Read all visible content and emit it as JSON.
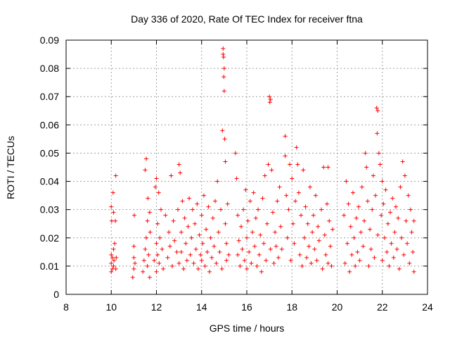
{
  "chart_data": {
    "type": "scatter",
    "title": "Day 336 of 2020, Rate Of TEC Index for receiver ftna",
    "xlabel": "GPS time / hours",
    "ylabel": "ROTI / TECUs",
    "xlim": [
      8,
      24
    ],
    "ylim": [
      0,
      0.09
    ],
    "x_ticks": [
      "8",
      "10",
      "12",
      "14",
      "16",
      "18",
      "20",
      "22",
      "24"
    ],
    "y_ticks": [
      "0",
      "0.01",
      "0.02",
      "0.03",
      "0.04",
      "0.05",
      "0.06",
      "0.07",
      "0.08",
      "0.09"
    ],
    "grid": true,
    "marker": "+",
    "color": "#ff0000",
    "series": [
      {
        "points": [
          [
            10.0,
            0.008
          ],
          [
            10.0,
            0.011
          ],
          [
            10.0,
            0.014
          ],
          [
            10.0,
            0.031
          ],
          [
            10.02,
            0.026
          ],
          [
            10.05,
            0.009
          ],
          [
            10.05,
            0.013
          ],
          [
            10.08,
            0.036
          ],
          [
            10.1,
            0.01
          ],
          [
            10.1,
            0.016
          ],
          [
            10.1,
            0.029
          ],
          [
            10.12,
            0.012
          ],
          [
            10.15,
            0.018
          ],
          [
            10.18,
            0.026
          ],
          [
            10.2,
            0.042
          ],
          [
            10.2,
            0.009
          ],
          [
            10.22,
            0.013
          ],
          [
            10.95,
            0.006
          ],
          [
            11.0,
            0.009
          ],
          [
            11.0,
            0.013
          ],
          [
            11.0,
            0.017
          ],
          [
            11.02,
            0.028
          ],
          [
            11.05,
            0.011
          ],
          [
            11.4,
            0.008
          ],
          [
            11.45,
            0.012
          ],
          [
            11.5,
            0.044
          ],
          [
            11.5,
            0.016
          ],
          [
            11.55,
            0.048
          ],
          [
            11.55,
            0.02
          ],
          [
            11.6,
            0.01
          ],
          [
            11.6,
            0.026
          ],
          [
            11.62,
            0.034
          ],
          [
            11.65,
            0.014
          ],
          [
            11.7,
            0.029
          ],
          [
            11.7,
            0.006
          ],
          [
            11.72,
            0.022
          ],
          [
            11.9,
            0.012
          ],
          [
            11.95,
            0.038
          ],
          [
            12.0,
            0.041
          ],
          [
            12.0,
            0.018
          ],
          [
            12.0,
            0.008
          ],
          [
            12.05,
            0.025
          ],
          [
            12.05,
            0.014
          ],
          [
            12.1,
            0.036
          ],
          [
            12.12,
            0.011
          ],
          [
            12.15,
            0.02
          ],
          [
            12.2,
            0.03
          ],
          [
            12.25,
            0.016
          ],
          [
            12.3,
            0.009
          ],
          [
            12.4,
            0.028
          ],
          [
            12.5,
            0.013
          ],
          [
            12.55,
            0.022
          ],
          [
            12.6,
            0.017
          ],
          [
            12.65,
            0.042
          ],
          [
            12.7,
            0.01
          ],
          [
            12.75,
            0.026
          ],
          [
            12.8,
            0.019
          ],
          [
            12.9,
            0.015
          ],
          [
            12.95,
            0.03
          ],
          [
            13.0,
            0.046
          ],
          [
            13.0,
            0.011
          ],
          [
            13.05,
            0.043
          ],
          [
            13.1,
            0.022
          ],
          [
            13.1,
            0.015
          ],
          [
            13.15,
            0.033
          ],
          [
            13.2,
            0.009
          ],
          [
            13.25,
            0.027
          ],
          [
            13.3,
            0.018
          ],
          [
            13.35,
            0.012
          ],
          [
            13.4,
            0.024
          ],
          [
            13.45,
            0.034
          ],
          [
            13.5,
            0.014
          ],
          [
            13.55,
            0.02
          ],
          [
            13.6,
            0.03
          ],
          [
            13.65,
            0.011
          ],
          [
            13.7,
            0.025
          ],
          [
            13.75,
            0.016
          ],
          [
            13.8,
            0.032
          ],
          [
            13.85,
            0.009
          ],
          [
            13.9,
            0.021
          ],
          [
            13.95,
            0.014
          ],
          [
            14.0,
            0.028
          ],
          [
            14.0,
            0.012
          ],
          [
            14.05,
            0.018
          ],
          [
            14.1,
            0.035
          ],
          [
            14.15,
            0.01
          ],
          [
            14.2,
            0.023
          ],
          [
            14.25,
            0.015
          ],
          [
            14.3,
            0.031
          ],
          [
            14.35,
            0.008
          ],
          [
            14.4,
            0.02
          ],
          [
            14.45,
            0.013
          ],
          [
            14.5,
            0.027
          ],
          [
            14.55,
            0.017
          ],
          [
            14.6,
            0.033
          ],
          [
            14.65,
            0.011
          ],
          [
            14.7,
            0.04
          ],
          [
            14.75,
            0.022
          ],
          [
            14.8,
            0.015
          ],
          [
            14.85,
            0.03
          ],
          [
            14.9,
            0.009
          ],
          [
            14.92,
            0.058
          ],
          [
            14.95,
            0.087
          ],
          [
            14.95,
            0.085
          ],
          [
            14.97,
            0.084
          ],
          [
            14.98,
            0.077
          ],
          [
            15.0,
            0.072
          ],
          [
            15.0,
            0.08
          ],
          [
            15.02,
            0.055
          ],
          [
            15.05,
            0.047
          ],
          [
            15.05,
            0.025
          ],
          [
            15.1,
            0.018
          ],
          [
            15.1,
            0.012
          ],
          [
            15.15,
            0.032
          ],
          [
            15.2,
            0.014
          ],
          [
            15.5,
            0.05
          ],
          [
            15.55,
            0.041
          ],
          [
            15.6,
            0.028
          ],
          [
            15.6,
            0.014
          ],
          [
            15.65,
            0.019
          ],
          [
            15.7,
            0.01
          ],
          [
            15.75,
            0.024
          ],
          [
            15.8,
            0.016
          ],
          [
            15.85,
            0.03
          ],
          [
            15.9,
            0.012
          ],
          [
            15.95,
            0.037
          ],
          [
            16.0,
            0.02
          ],
          [
            16.0,
            0.009
          ],
          [
            16.05,
            0.026
          ],
          [
            16.1,
            0.015
          ],
          [
            16.15,
            0.033
          ],
          [
            16.2,
            0.011
          ],
          [
            16.25,
            0.022
          ],
          [
            16.3,
            0.036
          ],
          [
            16.35,
            0.017
          ],
          [
            16.4,
            0.027
          ],
          [
            16.45,
            0.01
          ],
          [
            16.5,
            0.03
          ],
          [
            16.55,
            0.014
          ],
          [
            16.6,
            0.021
          ],
          [
            16.65,
            0.008
          ],
          [
            16.7,
            0.034
          ],
          [
            16.75,
            0.018
          ],
          [
            16.8,
            0.042
          ],
          [
            16.85,
            0.012
          ],
          [
            16.9,
            0.025
          ],
          [
            16.95,
            0.046
          ],
          [
            17.0,
            0.07
          ],
          [
            17.02,
            0.068
          ],
          [
            17.05,
            0.069
          ],
          [
            17.05,
            0.016
          ],
          [
            17.1,
            0.044
          ],
          [
            17.15,
            0.029
          ],
          [
            17.2,
            0.011
          ],
          [
            17.25,
            0.022
          ],
          [
            17.3,
            0.017
          ],
          [
            17.35,
            0.033
          ],
          [
            17.4,
            0.013
          ],
          [
            17.45,
            0.038
          ],
          [
            17.5,
            0.024
          ],
          [
            17.55,
            0.016
          ],
          [
            17.7,
            0.056
          ],
          [
            17.7,
            0.049
          ],
          [
            17.75,
            0.035
          ],
          [
            17.8,
            0.02
          ],
          [
            17.85,
            0.03
          ],
          [
            17.9,
            0.046
          ],
          [
            17.95,
            0.012
          ],
          [
            18.0,
            0.041
          ],
          [
            18.05,
            0.025
          ],
          [
            18.1,
            0.018
          ],
          [
            18.15,
            0.033
          ],
          [
            18.2,
            0.052
          ],
          [
            18.25,
            0.046
          ],
          [
            18.3,
            0.036
          ],
          [
            18.35,
            0.014
          ],
          [
            18.4,
            0.028
          ],
          [
            18.45,
            0.01
          ],
          [
            18.5,
            0.044
          ],
          [
            18.55,
            0.02
          ],
          [
            18.6,
            0.031
          ],
          [
            18.65,
            0.013
          ],
          [
            18.7,
            0.025
          ],
          [
            18.75,
            0.017
          ],
          [
            18.8,
            0.038
          ],
          [
            18.85,
            0.011
          ],
          [
            18.9,
            0.022
          ],
          [
            18.95,
            0.028
          ],
          [
            19.0,
            0.016
          ],
          [
            19.05,
            0.035
          ],
          [
            19.1,
            0.012
          ],
          [
            19.15,
            0.024
          ],
          [
            19.2,
            0.019
          ],
          [
            19.3,
            0.03
          ],
          [
            19.35,
            0.009
          ],
          [
            19.4,
            0.045
          ],
          [
            19.45,
            0.021
          ],
          [
            19.5,
            0.014
          ],
          [
            19.55,
            0.032
          ],
          [
            19.6,
            0.045
          ],
          [
            19.6,
            0.011
          ],
          [
            19.65,
            0.026
          ],
          [
            19.7,
            0.017
          ],
          [
            19.75,
            0.01
          ],
          [
            19.8,
            0.023
          ],
          [
            20.3,
            0.028
          ],
          [
            20.35,
            0.011
          ],
          [
            20.4,
            0.04
          ],
          [
            20.45,
            0.018
          ],
          [
            20.5,
            0.032
          ],
          [
            20.55,
            0.008
          ],
          [
            20.6,
            0.024
          ],
          [
            20.65,
            0.014
          ],
          [
            20.7,
            0.036
          ],
          [
            20.75,
            0.02
          ],
          [
            20.8,
            0.01
          ],
          [
            20.85,
            0.027
          ],
          [
            20.9,
            0.015
          ],
          [
            20.95,
            0.031
          ],
          [
            21.0,
            0.012
          ],
          [
            21.05,
            0.022
          ],
          [
            21.1,
            0.038
          ],
          [
            21.15,
            0.017
          ],
          [
            21.2,
            0.026
          ],
          [
            21.25,
            0.05
          ],
          [
            21.3,
            0.045
          ],
          [
            21.35,
            0.033
          ],
          [
            21.4,
            0.01
          ],
          [
            21.45,
            0.023
          ],
          [
            21.5,
            0.016
          ],
          [
            21.55,
            0.03
          ],
          [
            21.6,
            0.042
          ],
          [
            21.65,
            0.013
          ],
          [
            21.7,
            0.035
          ],
          [
            21.75,
            0.066
          ],
          [
            21.77,
            0.057
          ],
          [
            21.8,
            0.065
          ],
          [
            21.8,
            0.021
          ],
          [
            21.85,
            0.05
          ],
          [
            21.9,
            0.046
          ],
          [
            21.95,
            0.028
          ],
          [
            22.0,
            0.04
          ],
          [
            22.0,
            0.012
          ],
          [
            22.05,
            0.032
          ],
          [
            22.1,
            0.02
          ],
          [
            22.15,
            0.037
          ],
          [
            22.2,
            0.015
          ],
          [
            22.25,
            0.025
          ],
          [
            22.3,
            0.01
          ],
          [
            22.35,
            0.029
          ],
          [
            22.4,
            0.018
          ],
          [
            22.45,
            0.034
          ],
          [
            22.5,
            0.013
          ],
          [
            22.55,
            0.022
          ],
          [
            22.6,
            0.031
          ],
          [
            22.65,
            0.016
          ],
          [
            22.7,
            0.027
          ],
          [
            22.75,
            0.009
          ],
          [
            22.8,
            0.038
          ],
          [
            22.85,
            0.02
          ],
          [
            22.9,
            0.047
          ],
          [
            22.95,
            0.014
          ],
          [
            23.0,
            0.042
          ],
          [
            23.05,
            0.026
          ],
          [
            23.1,
            0.018
          ],
          [
            23.15,
            0.035
          ],
          [
            23.2,
            0.011
          ],
          [
            23.25,
            0.03
          ],
          [
            23.3,
            0.022
          ],
          [
            23.35,
            0.015
          ],
          [
            23.4,
            0.008
          ],
          [
            23.4,
            0.026
          ]
        ]
      }
    ]
  }
}
